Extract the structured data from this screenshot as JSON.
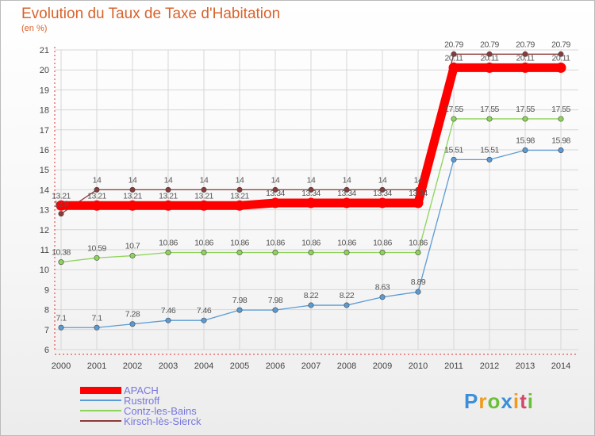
{
  "title": "Evolution du Taux de Taxe d'Habitation",
  "subtitle": "(en %)",
  "logo": {
    "text": "Proxiti",
    "letters": [
      "P",
      "r",
      "o",
      "x",
      "i",
      "t",
      "i"
    ]
  },
  "chart_data": {
    "type": "line",
    "title": "Evolution du Taux de Taxe d'Habitation",
    "ylabel": "(en %)",
    "xlabel": "",
    "ylim": [
      6,
      21
    ],
    "grid": true,
    "legend_position": "bottom-left",
    "x": [
      "2000",
      "2001",
      "2002",
      "2003",
      "2004",
      "2005",
      "2006",
      "2007",
      "2008",
      "2009",
      "2010",
      "2011",
      "2012",
      "2013",
      "2014"
    ],
    "yticks": [
      "6",
      "7",
      "8",
      "9",
      "10",
      "11",
      "12",
      "13",
      "14",
      "15",
      "16",
      "17",
      "18",
      "19",
      "20",
      "21"
    ],
    "series": [
      {
        "name": "APACH",
        "color": "#ff0000",
        "values": [
          13.21,
          13.21,
          13.21,
          13.21,
          13.21,
          13.21,
          13.34,
          13.34,
          13.34,
          13.34,
          13.34,
          20.11,
          20.11,
          20.11,
          20.11
        ],
        "labels": [
          "13.21",
          "13.21",
          "13.21",
          "13.21",
          "13.21",
          "13.21",
          "13.34",
          "13.34",
          "13.34",
          "13.34",
          "13.34",
          "20.11",
          "20.11",
          "20.11",
          "20.11"
        ]
      },
      {
        "name": "Rustroff",
        "color": "#5b9bd5",
        "values": [
          7.1,
          7.1,
          7.28,
          7.46,
          7.46,
          7.98,
          7.98,
          8.22,
          8.22,
          8.63,
          8.89,
          15.51,
          15.51,
          15.98,
          15.98
        ],
        "labels": [
          "7.1",
          "7.1",
          "7.28",
          "7.46",
          "7.46",
          "7.98",
          "7.98",
          "8.22",
          "8.22",
          "8.63",
          "8.89",
          "15.51",
          "15.51",
          "15.98",
          "15.98"
        ]
      },
      {
        "name": "Contz-les-Bains",
        "color": "#8ed35a",
        "values": [
          10.38,
          10.59,
          10.7,
          10.86,
          10.86,
          10.86,
          10.86,
          10.86,
          10.86,
          10.86,
          10.86,
          17.55,
          17.55,
          17.55,
          17.55
        ],
        "labels": [
          "10.38",
          "10.59",
          "10.7",
          "10.86",
          "10.86",
          "10.86",
          "10.86",
          "10.86",
          "10.86",
          "10.86",
          "10.86",
          "17.55",
          "17.55",
          "17.55",
          "17.55"
        ]
      },
      {
        "name": "Kirsch-lès-Sierck",
        "color": "#8b3a3a",
        "values": [
          12.8,
          14,
          14,
          14,
          14,
          14,
          14,
          14,
          14,
          14,
          14,
          20.79,
          20.79,
          20.79,
          20.79
        ],
        "labels": [
          "12.8",
          "14",
          "14",
          "14",
          "14",
          "14",
          "14",
          "14",
          "14",
          "14",
          "14",
          "20.79",
          "20.79",
          "20.79",
          "20.79"
        ]
      }
    ]
  }
}
